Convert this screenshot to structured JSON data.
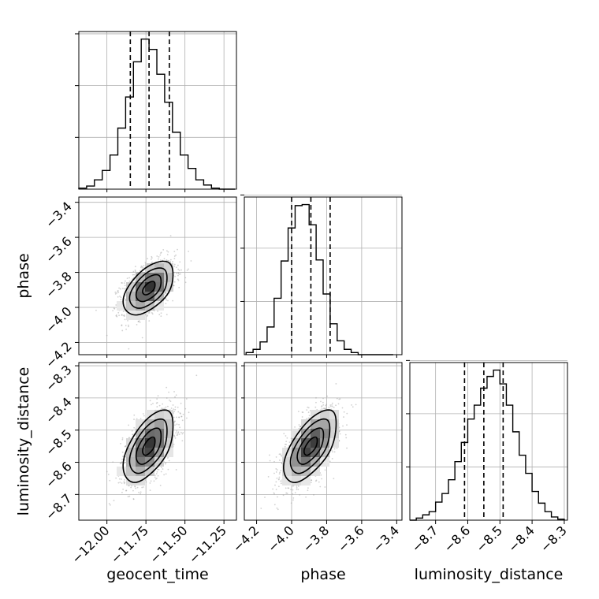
{
  "chart_data": {
    "type": "corner",
    "parameters": [
      "geocent_time",
      "phase",
      "luminosity_distance"
    ],
    "axes": {
      "geocent_time": {
        "range": [
          -12.18,
          -11.17
        ],
        "ticks": [
          -12.0,
          -11.75,
          -11.5,
          -11.25
        ],
        "tick_labels": [
          "−12.00",
          "−11.75",
          "−11.50",
          "−11.25"
        ]
      },
      "phase": {
        "range": [
          -4.27,
          -3.37
        ],
        "ticks": [
          -4.2,
          -4.0,
          -3.8,
          -3.6,
          -3.4
        ],
        "tick_labels": [
          "−4.2",
          "−4.0",
          "−3.8",
          "−3.6",
          "−3.4"
        ]
      },
      "luminosity_distance": {
        "range": [
          -8.78,
          -8.29
        ],
        "ticks": [
          -8.7,
          -8.6,
          -8.5,
          -8.4,
          -8.3
        ],
        "tick_labels": [
          "−8.7",
          "−8.6",
          "−8.5",
          "−8.4",
          "−8.3"
        ]
      }
    },
    "histograms": [
      {
        "parameter": "geocent_time",
        "bin_edges": [
          -12.18,
          -12.13,
          -12.08,
          -12.03,
          -11.98,
          -11.93,
          -11.88,
          -11.83,
          -11.78,
          -11.73,
          -11.68,
          -11.63,
          -11.58,
          -11.53,
          -11.48,
          -11.43,
          -11.38,
          -11.33,
          -11.28,
          -11.23,
          -11.18
        ],
        "counts": [
          1,
          3,
          9,
          18,
          33,
          59,
          89,
          123,
          145,
          135,
          111,
          84,
          55,
          33,
          20,
          9,
          4,
          1,
          0,
          0
        ],
        "quantiles": [
          -11.85,
          -11.73,
          -11.6
        ]
      },
      {
        "parameter": "phase",
        "bin_edges": [
          -4.26,
          -4.22,
          -4.18,
          -4.14,
          -4.1,
          -4.06,
          -4.02,
          -3.98,
          -3.94,
          -3.9,
          -3.86,
          -3.82,
          -3.78,
          -3.74,
          -3.7,
          -3.66,
          -3.62,
          -3.58,
          -3.54,
          -3.5,
          -3.46,
          -3.42
        ],
        "counts": [
          2,
          5,
          12,
          26,
          53,
          88,
          119,
          140,
          141,
          122,
          89,
          57,
          29,
          13,
          5,
          2,
          0,
          0,
          0,
          0,
          0
        ],
        "quantiles": [
          -4.0,
          -3.89,
          -3.78
        ]
      },
      {
        "parameter": "luminosity_distance",
        "bin_edges": [
          -8.78,
          -8.76,
          -8.74,
          -8.72,
          -8.7,
          -8.68,
          -8.66,
          -8.64,
          -8.62,
          -8.6,
          -8.58,
          -8.56,
          -8.54,
          -8.52,
          -8.5,
          -8.48,
          -8.46,
          -8.44,
          -8.42,
          -8.4,
          -8.38,
          -8.36,
          -8.34,
          -8.32,
          -8.3
        ],
        "counts": [
          0,
          2,
          5,
          8,
          17,
          25,
          38,
          55,
          73,
          95,
          108,
          124,
          135,
          141,
          128,
          108,
          83,
          61,
          44,
          27,
          16,
          8,
          3,
          1
        ],
        "quantiles": [
          -8.61,
          -8.55,
          -8.49
        ]
      }
    ],
    "joint": [
      {
        "x": "geocent_time",
        "y": "phase",
        "mean": [
          -11.73,
          -3.89
        ],
        "sd": [
          0.08,
          0.075
        ],
        "corr": 0.5
      },
      {
        "x": "geocent_time",
        "y": "luminosity_distance",
        "mean": [
          -11.73,
          -8.55
        ],
        "sd": [
          0.08,
          0.055
        ],
        "corr": 0.55
      },
      {
        "x": "phase",
        "y": "luminosity_distance",
        "mean": [
          -3.89,
          -8.55
        ],
        "sd": [
          0.075,
          0.055
        ],
        "corr": 0.6
      }
    ],
    "contour_levels_sigma": [
      0.5,
      1,
      1.5,
      2
    ],
    "grid": true,
    "colors": {
      "line": "#000000",
      "scatter": "#9a9a9a",
      "grid": "#b0b0b0"
    }
  }
}
